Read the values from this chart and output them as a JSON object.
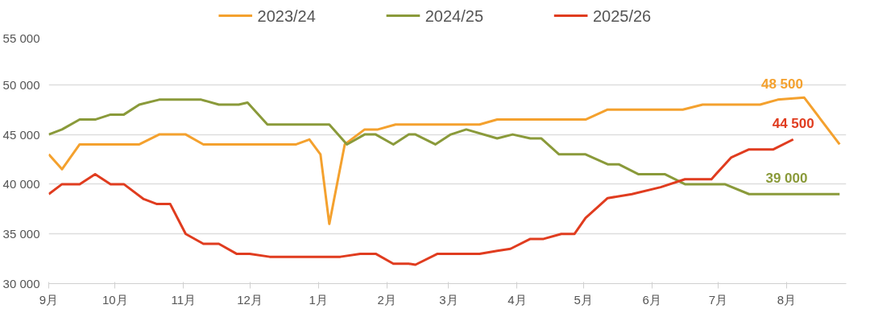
{
  "chart_data": {
    "type": "line",
    "xlim": [
      "2024-09-01",
      "2025-08-28"
    ],
    "ylim": [
      30000,
      55000
    ],
    "xticks": [
      {
        "value": "2024-09-01",
        "label": "9月"
      },
      {
        "value": "2024-10-01",
        "label": "10月"
      },
      {
        "value": "2024-11-01",
        "label": "11月"
      },
      {
        "value": "2024-12-01",
        "label": "12月"
      },
      {
        "value": "2025-01-01",
        "label": "1月"
      },
      {
        "value": "2025-02-01",
        "label": "2月"
      },
      {
        "value": "2025-03-01",
        "label": "3月"
      },
      {
        "value": "2025-04-01",
        "label": "4月"
      },
      {
        "value": "2025-05-01",
        "label": "5月"
      },
      {
        "value": "2025-06-01",
        "label": "6月"
      },
      {
        "value": "2025-07-01",
        "label": "7月"
      },
      {
        "value": "2025-08-01",
        "label": "8月"
      }
    ],
    "yticks": [
      {
        "value": 30000,
        "label": "30 000"
      },
      {
        "value": 35000,
        "label": "35 000"
      },
      {
        "value": 40000,
        "label": "40 000"
      },
      {
        "value": 45000,
        "label": "45 000"
      },
      {
        "value": 50000,
        "label": "50 000"
      },
      {
        "value": 55000,
        "label": "55 000"
      }
    ],
    "grid": "y",
    "legend": "top",
    "series": [
      {
        "name": "2023/24",
        "color": "#f4a12e",
        "x": [
          "2024-09-01",
          "2024-09-07",
          "2024-09-15",
          "2024-09-22",
          "2024-10-12",
          "2024-10-21",
          "2024-11-02",
          "2024-11-10",
          "2024-12-22",
          "2024-12-28",
          "2025-01-02",
          "2025-01-06",
          "2025-01-13",
          "2025-01-22",
          "2025-01-28",
          "2025-02-05",
          "2025-03-15",
          "2025-03-23",
          "2025-05-02",
          "2025-05-12",
          "2025-06-15",
          "2025-06-24",
          "2025-07-20",
          "2025-07-28",
          "2025-08-09",
          "2025-08-25"
        ],
        "values": [
          43000,
          41500,
          44000,
          44000,
          44000,
          45000,
          45000,
          44000,
          44000,
          44500,
          43000,
          36000,
          44000,
          45500,
          45500,
          46000,
          46000,
          46500,
          46500,
          47500,
          47500,
          48000,
          48000,
          48500,
          48700,
          44000
        ]
      },
      {
        "name": "2024/25",
        "color": "#8a9a3a",
        "x": [
          "2024-09-01",
          "2024-09-07",
          "2024-09-15",
          "2024-09-22",
          "2024-09-29",
          "2024-10-05",
          "2024-10-12",
          "2024-10-21",
          "2024-11-09",
          "2024-11-17",
          "2024-11-26",
          "2024-11-30",
          "2024-12-09",
          "2024-12-15",
          "2024-12-31",
          "2025-01-06",
          "2025-01-14",
          "2025-01-22",
          "2025-01-27",
          "2025-02-04",
          "2025-02-11",
          "2025-02-14",
          "2025-02-23",
          "2025-03-02",
          "2025-03-09",
          "2025-03-23",
          "2025-03-30",
          "2025-04-07",
          "2025-04-12",
          "2025-04-20",
          "2025-05-02",
          "2025-05-12",
          "2025-05-17",
          "2025-05-26",
          "2025-06-07",
          "2025-06-16",
          "2025-07-04",
          "2025-07-15",
          "2025-08-25"
        ],
        "values": [
          45000,
          45500,
          46500,
          46500,
          47000,
          47000,
          48000,
          48500,
          48500,
          48000,
          48000,
          48200,
          46000,
          46000,
          46000,
          46000,
          44000,
          45000,
          45000,
          44000,
          45000,
          45000,
          44000,
          45000,
          45500,
          44600,
          45000,
          44600,
          44600,
          43000,
          43000,
          42000,
          42000,
          41000,
          41000,
          40000,
          40000,
          39000,
          39000
        ]
      },
      {
        "name": "2025/26",
        "color": "#e03c1f",
        "x": [
          "2024-09-01",
          "2024-09-07",
          "2024-09-15",
          "2024-09-22",
          "2024-09-29",
          "2024-10-05",
          "2024-10-14",
          "2024-10-20",
          "2024-10-26",
          "2024-11-02",
          "2024-11-10",
          "2024-11-17",
          "2024-11-25",
          "2024-12-01",
          "2024-12-10",
          "2025-01-11",
          "2025-01-20",
          "2025-01-27",
          "2025-02-04",
          "2025-02-11",
          "2025-02-14",
          "2025-02-24",
          "2025-03-15",
          "2025-03-23",
          "2025-03-29",
          "2025-04-07",
          "2025-04-13",
          "2025-04-21",
          "2025-04-27",
          "2025-05-02",
          "2025-05-12",
          "2025-05-23",
          "2025-06-05",
          "2025-06-16",
          "2025-06-28",
          "2025-06-30",
          "2025-07-07",
          "2025-07-15",
          "2025-07-26",
          "2025-08-04"
        ],
        "values": [
          39000,
          40000,
          40000,
          41000,
          40000,
          40000,
          38500,
          38000,
          38000,
          35000,
          34000,
          34000,
          33000,
          33000,
          32700,
          32700,
          33000,
          33000,
          32000,
          32000,
          31900,
          33000,
          33000,
          33300,
          33500,
          34500,
          34500,
          35000,
          35000,
          36600,
          38600,
          39000,
          39700,
          40500,
          40500,
          41000,
          42700,
          43500,
          43500,
          44500
        ]
      }
    ],
    "annotations": [
      {
        "text": "48 500",
        "x": "2025-07-30",
        "y": 48500
      },
      {
        "text": "44 500",
        "x": "2025-08-04",
        "y": 44500
      },
      {
        "text": "39 000",
        "x": "2025-08-01",
        "y": 39000
      }
    ]
  }
}
